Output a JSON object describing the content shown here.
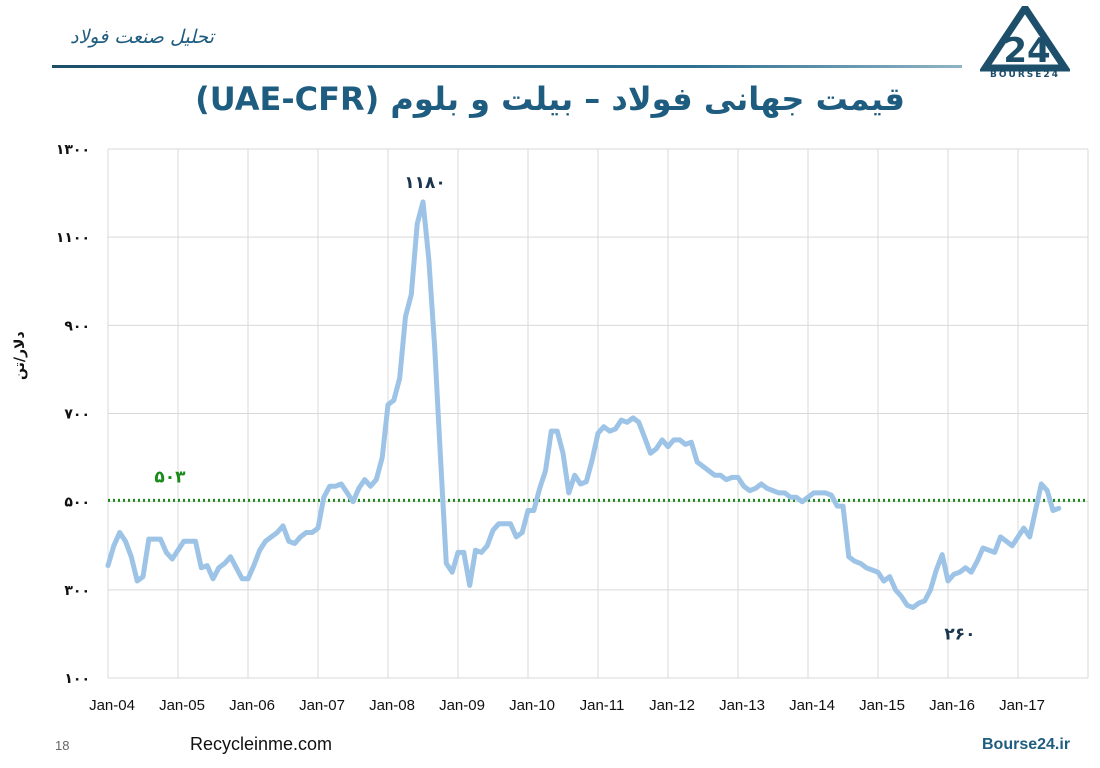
{
  "header": {
    "section_label": "تحلیل صنعت فولاد",
    "logo_text": "BOURSE24"
  },
  "footer": {
    "page_number": "18",
    "source": "Recycleinme.com",
    "brand": "Bourse24.ir"
  },
  "colors": {
    "accent": "#1f5d80",
    "line": "#9dc3e6",
    "reference": "#1a8a1a",
    "grid": "#d9d9d9"
  },
  "chart_data": {
    "type": "line",
    "title": "قیمت جهانی فولاد – بیلت و بلوم (UAE-CFR)",
    "ylabel": "دلار/تن",
    "xlabel": "",
    "ylim": [
      100,
      1300
    ],
    "yticks": [
      100,
      300,
      500,
      700,
      900,
      1100,
      1300
    ],
    "ytick_labels": [
      "۱۰۰",
      "۳۰۰",
      "۵۰۰",
      "۷۰۰",
      "۹۰۰",
      "۱۱۰۰",
      "۱۳۰۰"
    ],
    "xtick_labels": [
      "Jan-04",
      "Jan-05",
      "Jan-06",
      "Jan-07",
      "Jan-08",
      "Jan-09",
      "Jan-10",
      "Jan-11",
      "Jan-12",
      "Jan-13",
      "Jan-14",
      "Jan-15",
      "Jan-16",
      "Jan-17"
    ],
    "x_start": "Jan-04",
    "grid": true,
    "reference_line": {
      "value": 503,
      "label": "۵۰۳",
      "style": "dotted"
    },
    "annotations": [
      {
        "x": "Jul-08",
        "y": 1180,
        "label": "۱۱۸۰"
      },
      {
        "x": "Jan-16",
        "y": 260,
        "label": "۲۶۰"
      }
    ],
    "series": [
      {
        "values": [
          355,
          400,
          430,
          410,
          375,
          320,
          330,
          415,
          415,
          415,
          385,
          370,
          390,
          410,
          410,
          410,
          350,
          355,
          325,
          350,
          360,
          375,
          350,
          325,
          325,
          355,
          390,
          410,
          420,
          430,
          445,
          410,
          405,
          420,
          430,
          430,
          440,
          510,
          535,
          535,
          540,
          520,
          500,
          530,
          550,
          535,
          550,
          600,
          720,
          730,
          780,
          920,
          970,
          1130,
          1180,
          1050,
          850,
          600,
          360,
          340,
          385,
          385,
          310,
          390,
          385,
          400,
          435,
          450,
          450,
          450,
          420,
          430,
          480,
          480,
          530,
          570,
          660,
          660,
          610,
          520,
          560,
          540,
          545,
          595,
          655,
          670,
          660,
          665,
          685,
          680,
          690,
          680,
          645,
          610,
          620,
          640,
          625,
          640,
          640,
          630,
          635,
          590,
          580,
          570,
          560,
          560,
          550,
          555,
          555,
          535,
          525,
          530,
          540,
          530,
          525,
          520,
          520,
          510,
          510,
          500,
          510,
          520,
          520,
          520,
          515,
          490,
          490,
          375,
          365,
          360,
          350,
          345,
          340,
          320,
          330,
          300,
          285,
          265,
          260,
          270,
          275,
          300,
          345,
          380,
          320,
          335,
          340,
          350,
          340,
          365,
          395,
          390,
          385,
          420,
          410,
          400,
          420,
          440,
          420,
          480,
          540,
          525,
          480,
          485
        ]
      }
    ]
  }
}
